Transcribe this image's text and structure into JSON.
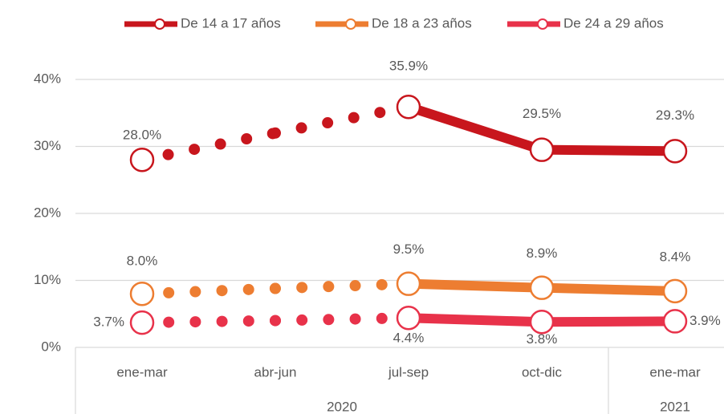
{
  "chart_data": {
    "type": "line",
    "categories": [
      "ene-mar",
      "abr-jun",
      "jul-sep",
      "oct-dic",
      "ene-mar"
    ],
    "group_labels": [
      "2020",
      "2021"
    ],
    "group_sizes": [
      4,
      1
    ],
    "segment_styles": [
      "dotted",
      "dotted",
      "solid",
      "solid"
    ],
    "series": [
      {
        "name": "De 14 a 17 años",
        "color": "#c8161d",
        "values": [
          28.0,
          32.0,
          35.9,
          29.5,
          29.3
        ],
        "value_labels": [
          "28.0%",
          null,
          "35.9%",
          "29.5%",
          "29.3%"
        ]
      },
      {
        "name": "De 18 a 23 años",
        "color": "#ed7d31",
        "values": [
          8.0,
          8.8,
          9.5,
          8.9,
          8.4
        ],
        "value_labels": [
          "8.0%",
          null,
          "9.5%",
          "8.9%",
          "8.4%"
        ]
      },
      {
        "name": "De 24 a 29 años",
        "color": "#e8324a",
        "values": [
          3.7,
          4.0,
          4.4,
          3.8,
          3.9
        ],
        "value_labels": [
          "3.7%",
          null,
          "4.4%",
          "3.8%",
          "3.9%"
        ]
      }
    ],
    "ylim": [
      0,
      40
    ],
    "yticks": [
      {
        "value": 0,
        "label": "0%"
      },
      {
        "value": 10,
        "label": "10%"
      },
      {
        "value": 20,
        "label": "20%"
      },
      {
        "value": 30,
        "label": "30%"
      },
      {
        "value": 40,
        "label": "40%"
      }
    ],
    "grid": true,
    "legend": "top"
  }
}
